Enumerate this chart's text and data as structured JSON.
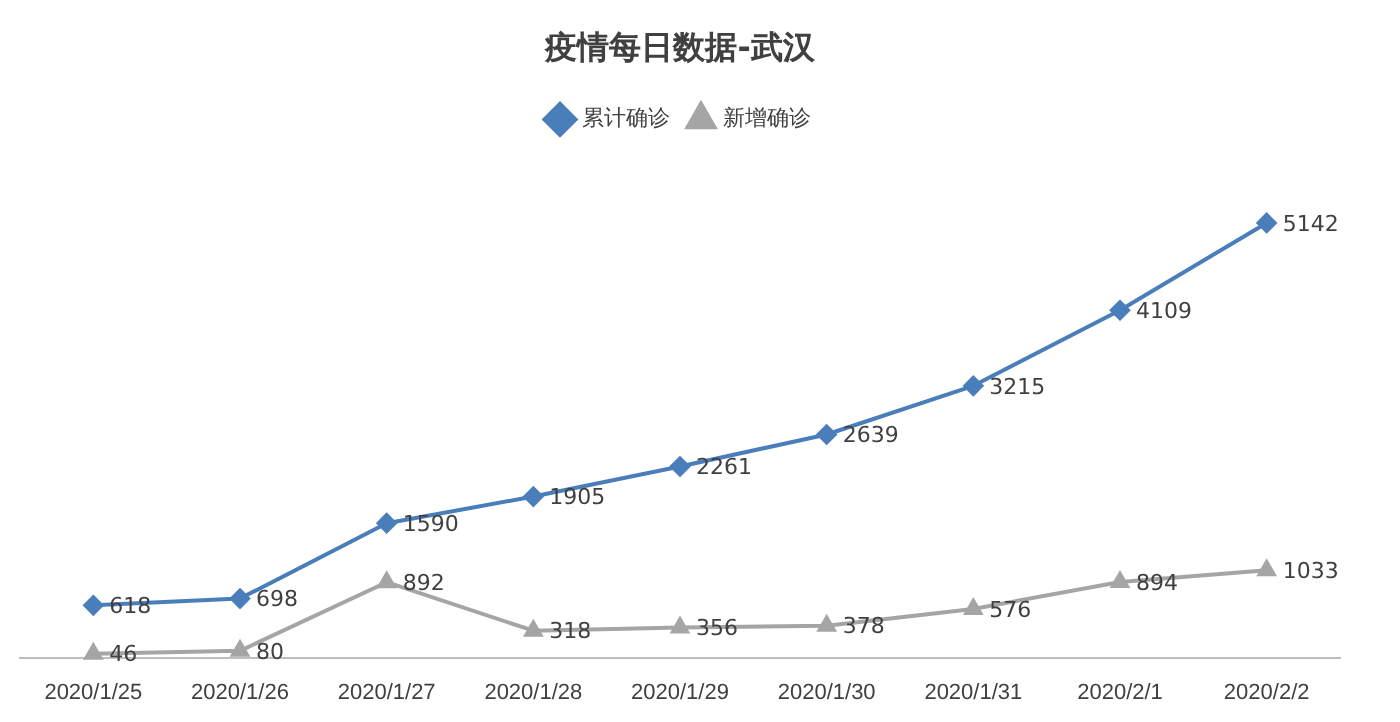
{
  "chart_data": {
    "type": "line",
    "title": "疫情每日数据-武汉",
    "categories": [
      "2020/1/25",
      "2020/1/26",
      "2020/1/27",
      "2020/1/28",
      "2020/1/29",
      "2020/1/30",
      "2020/1/31",
      "2020/2/1",
      "2020/2/2"
    ],
    "series": [
      {
        "name": "累计确诊",
        "color": "#4a7ebb",
        "marker": "diamond",
        "values": [
          618,
          698,
          1590,
          1905,
          2261,
          2639,
          3215,
          4109,
          5142
        ]
      },
      {
        "name": "新增确诊",
        "color": "#a5a5a5",
        "marker": "triangle",
        "values": [
          46,
          80,
          892,
          318,
          356,
          378,
          576,
          894,
          1033
        ]
      }
    ],
    "legend": "top",
    "grid": false,
    "tick_labels": "x",
    "data_labels": true,
    "line_style": "solid"
  }
}
